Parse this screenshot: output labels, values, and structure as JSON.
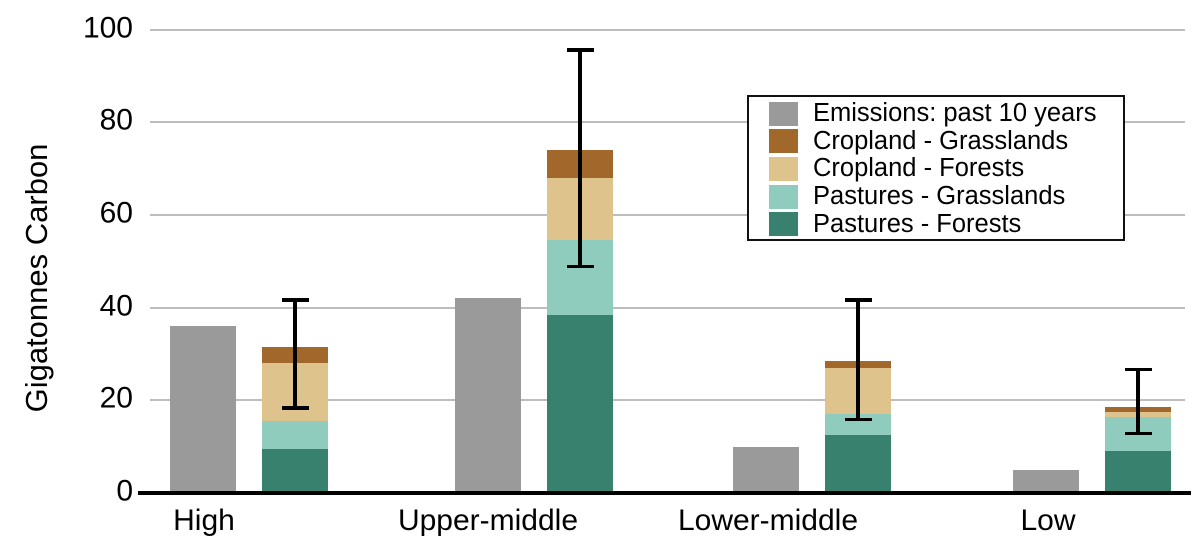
{
  "chart_data": {
    "type": "bar",
    "subtype": "grouped: plain bar + stacked bar per category, stacked bar has error bars",
    "title": "",
    "xlabel": "",
    "ylabel": "Gigatonnes Carbon",
    "ylim": [
      0,
      100
    ],
    "yticks": [
      0,
      20,
      40,
      60,
      80,
      100
    ],
    "grid": "horizontal gridlines on",
    "categories": [
      "High",
      "Upper-middle",
      "Lower-middle",
      "Low"
    ],
    "emissions_series": {
      "name": "Emissions: past 10 years",
      "color": "#9a9a9a",
      "values": [
        36,
        42,
        10,
        5
      ]
    },
    "stacked_series_bottom_to_top": [
      {
        "name": "Pastures - Forests",
        "color": "#37816e",
        "values": [
          9.5,
          38.5,
          12.5,
          9.0
        ]
      },
      {
        "name": "Pastures - Grasslands",
        "color": "#90ccbd",
        "values": [
          6.0,
          16.0,
          4.5,
          7.5
        ]
      },
      {
        "name": "Cropland - Forests",
        "color": "#dfc38c",
        "values": [
          12.5,
          13.5,
          10.0,
          1.0
        ]
      },
      {
        "name": "Cropland - Grasslands",
        "color": "#a2672b",
        "values": [
          3.5,
          6.0,
          1.5,
          1.0
        ]
      }
    ],
    "stacked_totals": [
      31.5,
      74,
      28.5,
      18.5
    ],
    "error_bars": {
      "color": "#000000",
      "ranges": [
        {
          "low": 18,
          "high": 42
        },
        {
          "low": 48.5,
          "high": 96
        },
        {
          "low": 15.5,
          "high": 42
        },
        {
          "low": 12.5,
          "high": 27
        }
      ]
    },
    "legend": {
      "position": "top-right",
      "items": [
        {
          "label": "Emissions: past 10 years",
          "color": "#9a9a9a"
        },
        {
          "label": "Cropland - Grasslands",
          "color": "#a2672b"
        },
        {
          "label": "Cropland - Forests",
          "color": "#dfc38c"
        },
        {
          "label": "Pastures - Grasslands",
          "color": "#90ccbd"
        },
        {
          "label": "Pastures - Forests",
          "color": "#37816e"
        }
      ]
    },
    "colors": {
      "gridline": "#bdbdbd",
      "axis": "#000000",
      "background": "#ffffff",
      "text": "#000000"
    }
  }
}
